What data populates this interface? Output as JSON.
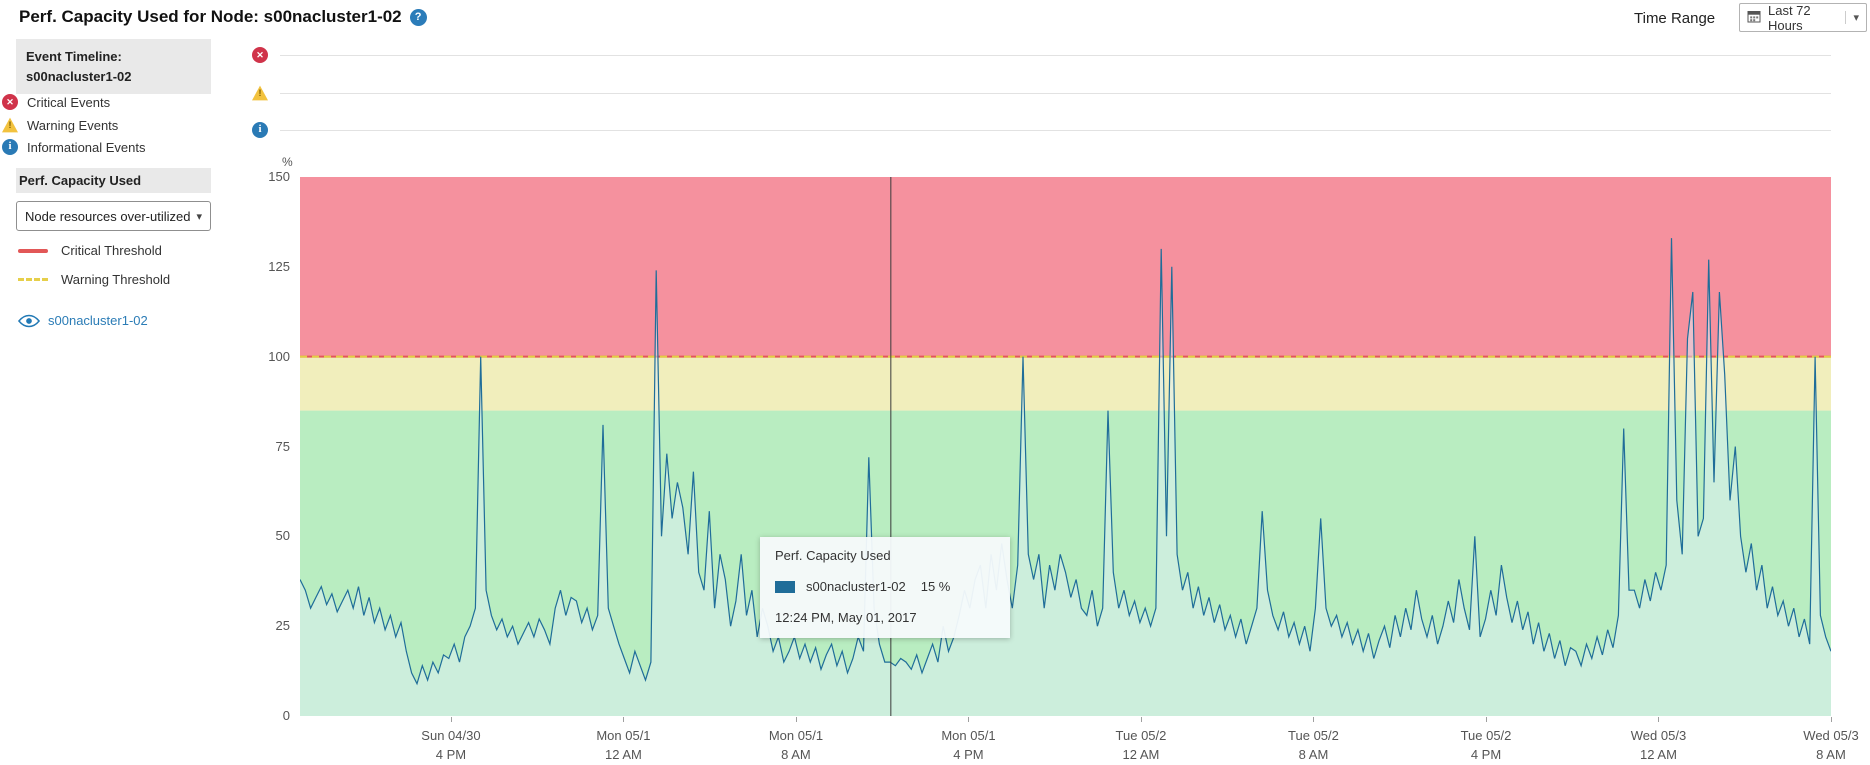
{
  "header": {
    "title": "Perf. Capacity Used for Node: s00nacluster1-02",
    "time_range_label": "Time Range",
    "time_range_value": "Last 72 Hours"
  },
  "sidebar": {
    "event_timeline_title": "Event Timeline:",
    "event_timeline_node": "s00nacluster1-02",
    "event_legend": [
      {
        "icon": "critical-event-icon",
        "label": "Critical Events"
      },
      {
        "icon": "warning-event-icon",
        "label": "Warning Events"
      },
      {
        "icon": "informational-event-icon",
        "label": "Informational Events"
      }
    ],
    "perf_section_title": "Perf. Capacity Used",
    "counter_dropdown_value": "Node resources over-utilized",
    "threshold_legend": [
      {
        "icon": "critical-threshold-line",
        "label": "Critical Threshold"
      },
      {
        "icon": "warning-threshold-line",
        "label": "Warning Threshold"
      }
    ],
    "series_toggle_label": "s00nacluster1-02"
  },
  "tooltip": {
    "title": "Perf. Capacity Used",
    "series": "s00nacluster1-02",
    "value": "15 %",
    "timestamp": "12:24 PM, May 01, 2017"
  },
  "chart_data": {
    "type": "line",
    "title": "Perf. Capacity Used",
    "ylabel": "%",
    "ylim": [
      0,
      150
    ],
    "yticks": [
      0,
      25,
      50,
      75,
      100,
      125,
      150
    ],
    "total_hours": 71,
    "x_tick_hours": [
      7,
      15,
      23,
      31,
      39,
      47,
      55,
      63,
      71
    ],
    "x_tick_labels": [
      [
        "Sun 04/30",
        "4 PM"
      ],
      [
        "Mon 05/1",
        "12 AM"
      ],
      [
        "Mon 05/1",
        "8 AM"
      ],
      [
        "Mon 05/1",
        "4 PM"
      ],
      [
        "Tue 05/2",
        "12 AM"
      ],
      [
        "Tue 05/2",
        "8 AM"
      ],
      [
        "Tue 05/2",
        "4 PM"
      ],
      [
        "Wed 05/3",
        "12 AM"
      ],
      [
        "Wed 05/3",
        "8 AM"
      ]
    ],
    "zones": [
      {
        "from": 0,
        "to": 85,
        "color": "#b9edc1",
        "label": "normal"
      },
      {
        "from": 85,
        "to": 100,
        "color": "#f1eebc",
        "label": "warning"
      },
      {
        "from": 100,
        "to": 150,
        "color": "#f5919e",
        "label": "critical"
      }
    ],
    "critical_threshold": {
      "value": 100,
      "style": "solid",
      "color": "#e25757"
    },
    "warning_threshold": {
      "value": 100,
      "style": "dashed",
      "color": "#e3cf43"
    },
    "cursor": {
      "hour": 27.4,
      "value": 15,
      "timestamp": "12:24 PM, May 01, 2017"
    },
    "series": [
      {
        "name": "s00nacluster1-02",
        "color": "#1f6d99",
        "values": [
          38,
          35,
          30,
          33,
          36,
          31,
          34,
          29,
          32,
          35,
          30,
          36,
          28,
          33,
          26,
          30,
          24,
          28,
          22,
          26,
          18,
          12,
          9,
          14,
          10,
          15,
          12,
          17,
          16,
          20,
          15,
          22,
          25,
          30,
          100,
          35,
          28,
          24,
          27,
          22,
          25,
          20,
          23,
          26,
          22,
          27,
          24,
          20,
          30,
          35,
          28,
          33,
          32,
          26,
          30,
          24,
          28,
          81,
          30,
          25,
          20,
          16,
          12,
          18,
          14,
          10,
          15,
          124,
          50,
          73,
          55,
          65,
          58,
          45,
          68,
          40,
          35,
          57,
          30,
          45,
          38,
          25,
          32,
          45,
          28,
          35,
          22,
          30,
          25,
          18,
          22,
          15,
          18,
          22,
          16,
          20,
          15,
          19,
          13,
          17,
          20,
          14,
          18,
          12,
          16,
          22,
          18,
          72,
          30,
          20,
          15,
          15,
          14,
          16,
          15,
          13,
          17,
          12,
          16,
          20,
          15,
          25,
          18,
          22,
          28,
          35,
          30,
          38,
          42,
          30,
          45,
          35,
          48,
          38,
          30,
          42,
          100,
          45,
          38,
          45,
          30,
          42,
          35,
          45,
          40,
          33,
          38,
          30,
          28,
          35,
          25,
          30,
          85,
          40,
          30,
          35,
          28,
          32,
          26,
          30,
          25,
          30,
          130,
          50,
          125,
          45,
          35,
          40,
          30,
          36,
          28,
          33,
          26,
          31,
          24,
          28,
          22,
          27,
          20,
          25,
          30,
          57,
          35,
          28,
          24,
          29,
          22,
          26,
          20,
          25,
          18,
          30,
          55,
          30,
          25,
          28,
          22,
          26,
          20,
          24,
          18,
          23,
          16,
          21,
          25,
          19,
          28,
          22,
          30,
          24,
          35,
          27,
          22,
          28,
          20,
          25,
          32,
          26,
          38,
          30,
          24,
          50,
          22,
          27,
          35,
          28,
          42,
          33,
          26,
          32,
          24,
          29,
          20,
          26,
          18,
          23,
          16,
          21,
          14,
          19,
          18,
          14,
          20,
          16,
          22,
          17,
          24,
          19,
          28,
          80,
          35,
          35,
          30,
          38,
          32,
          40,
          35,
          42,
          133,
          60,
          45,
          105,
          118,
          50,
          55,
          127,
          65,
          118,
          95,
          60,
          75,
          50,
          40,
          48,
          35,
          42,
          30,
          36,
          28,
          32,
          25,
          30,
          22,
          27,
          20,
          100,
          28,
          22,
          18
        ]
      }
    ]
  }
}
